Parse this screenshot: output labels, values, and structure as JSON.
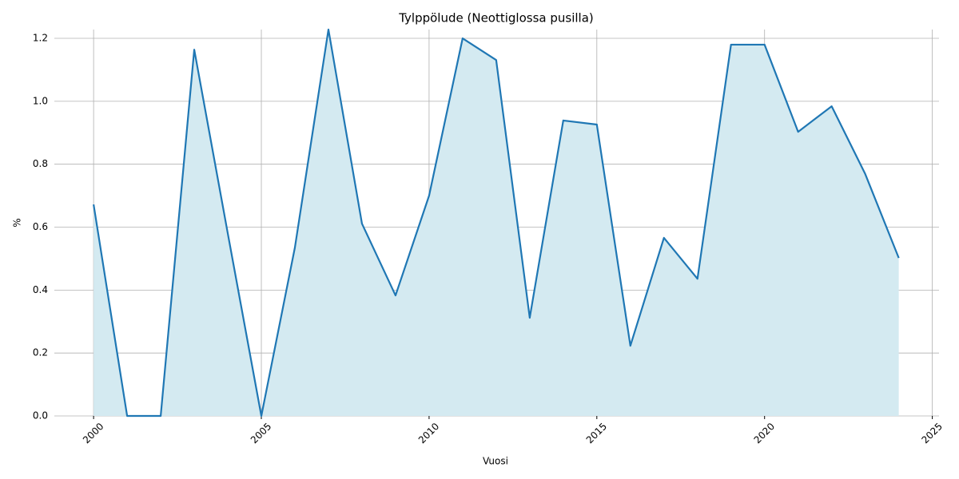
{
  "chart_data": {
    "type": "line",
    "title": "Tylppölude (Neottiglossa pusilla)",
    "xlabel": "Vuosi",
    "ylabel": "%",
    "x": [
      2000,
      2001,
      2002,
      2003,
      2004,
      2005,
      2006,
      2007,
      2008,
      2009,
      2010,
      2011,
      2012,
      2013,
      2014,
      2015,
      2016,
      2017,
      2018,
      2019,
      2020,
      2021,
      2022,
      2023,
      2024
    ],
    "series": [
      {
        "name": "Tylppölude",
        "color": "#1f77b4",
        "fill_color": "#d4eaf1",
        "values": [
          0.672,
          0,
          0,
          1.164,
          0.58,
          0,
          0.535,
          1.228,
          0.611,
          0.383,
          0.7,
          1.2,
          1.131,
          0.312,
          0.939,
          0.926,
          0.223,
          0.566,
          0.436,
          1.18,
          1.18,
          0.903,
          0.984,
          0.769,
          0.502
        ]
      }
    ],
    "xlim": [
      1998.83,
      2025.2
    ],
    "ylim": [
      0,
      1.228
    ],
    "xticks": [
      2000,
      2005,
      2010,
      2015,
      2020,
      2025
    ],
    "yticks": [
      {
        "value": 0,
        "label": "0.0"
      },
      {
        "value": 0.2,
        "label": "0.2"
      },
      {
        "value": 0.4,
        "label": "0.4"
      },
      {
        "value": 0.6,
        "label": "0.6"
      },
      {
        "value": 0.8,
        "label": "0.8"
      },
      {
        "value": 1,
        "label": "1.0"
      },
      {
        "value": 1.2,
        "label": "1.2"
      }
    ],
    "grid": true
  }
}
